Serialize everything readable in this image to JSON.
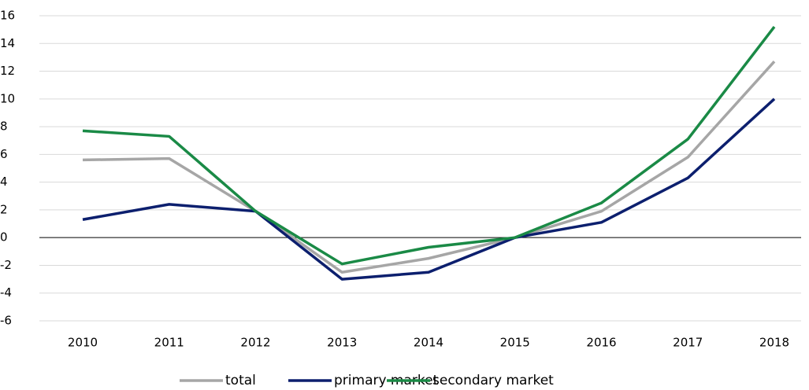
{
  "chart_data": {
    "type": "line",
    "categories": [
      "2010",
      "2011",
      "2012",
      "2013",
      "2014",
      "2015",
      "2016",
      "2017",
      "2018"
    ],
    "series": [
      {
        "name": "total",
        "color": "#a6a6a6",
        "values": [
          5.6,
          5.7,
          1.9,
          -2.5,
          -1.5,
          0,
          1.9,
          5.8,
          12.7
        ]
      },
      {
        "name": "primary market",
        "color": "#0c1f6e",
        "values": [
          1.3,
          2.4,
          1.9,
          -3.0,
          -2.5,
          0,
          1.1,
          4.3,
          10.0
        ]
      },
      {
        "name": "secondary market",
        "color": "#1a8a46",
        "values": [
          7.7,
          7.3,
          1.9,
          -1.9,
          -0.7,
          0,
          2.5,
          7.1,
          15.2
        ]
      }
    ],
    "ylim": [
      -6,
      16
    ],
    "yticks": [
      -6,
      -4,
      -2,
      0,
      2,
      4,
      6,
      8,
      10,
      12,
      14,
      16
    ],
    "grid": true,
    "legend": "bottom"
  }
}
